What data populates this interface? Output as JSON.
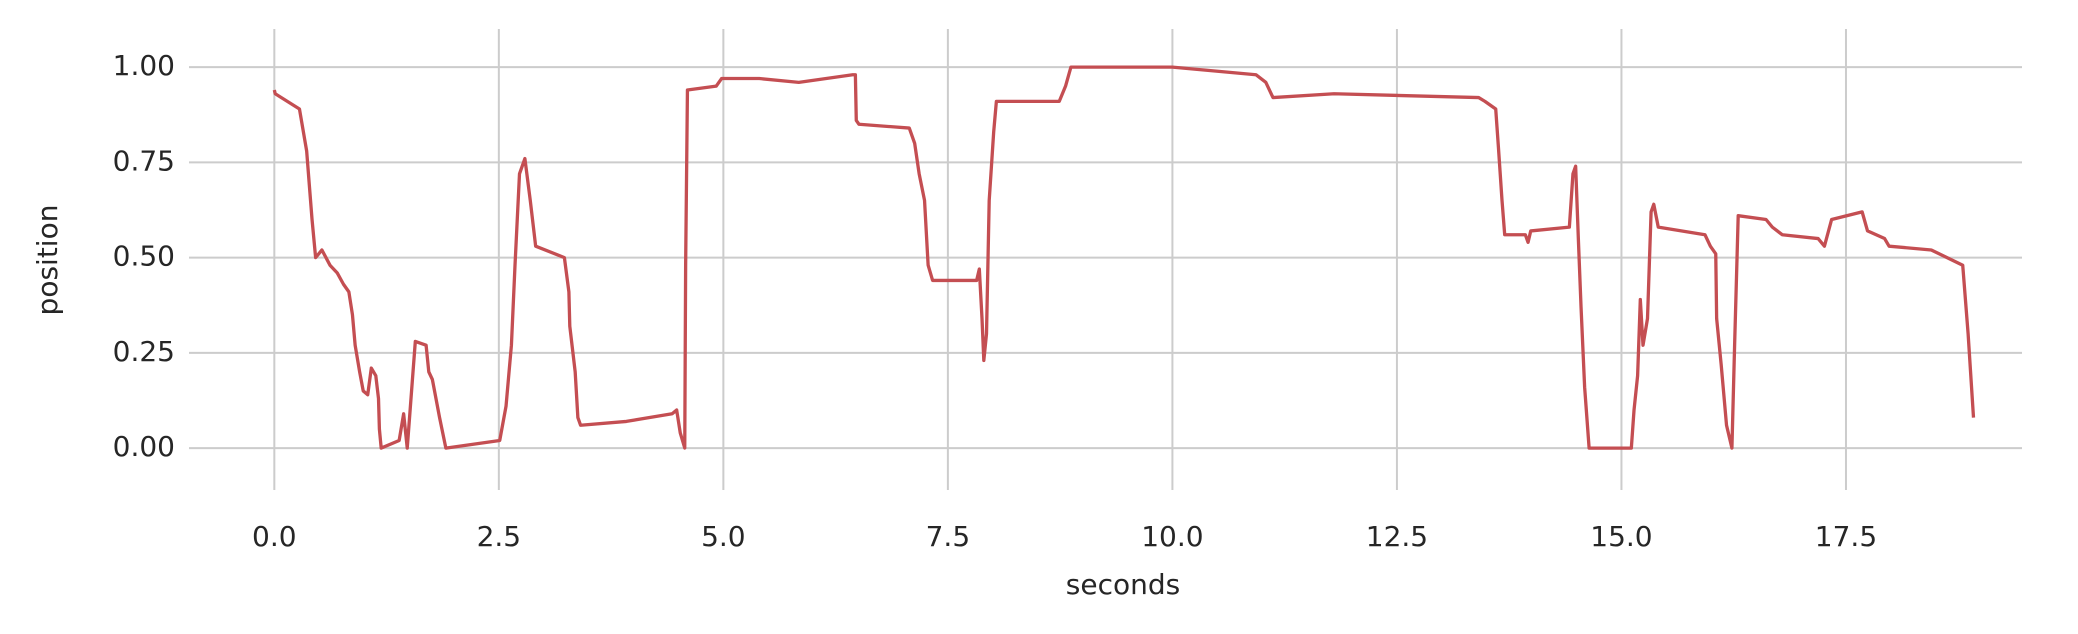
{
  "chart_data": {
    "type": "line",
    "x_label": "seconds",
    "y_label": "position",
    "x": [
      0.0,
      0.01,
      0.28,
      0.36,
      0.39,
      0.42,
      0.46,
      0.53,
      0.62,
      0.7,
      0.77,
      0.83,
      0.87,
      0.9,
      0.95,
      0.99,
      1.04,
      1.08,
      1.13,
      1.16,
      1.17,
      1.19,
      1.39,
      1.44,
      1.48,
      1.57,
      1.69,
      1.72,
      1.76,
      1.84,
      1.91,
      2.51,
      2.58,
      2.64,
      2.68,
      2.73,
      2.79,
      2.85,
      2.91,
      3.23,
      3.28,
      3.29,
      3.35,
      3.38,
      3.41,
      3.92,
      4.43,
      4.48,
      4.52,
      4.57,
      4.58,
      4.6,
      4.92,
      4.98,
      5.4,
      5.84,
      6.44,
      6.47,
      6.48,
      6.51,
      7.07,
      7.13,
      7.18,
      7.24,
      7.28,
      7.33,
      7.82,
      7.85,
      7.88,
      7.9,
      7.93,
      7.96,
      8.01,
      8.04,
      8.74,
      8.81,
      8.87,
      10.0,
      10.93,
      11.04,
      11.12,
      11.8,
      13.41,
      13.48,
      13.6,
      13.63,
      13.67,
      13.7,
      13.93,
      13.96,
      13.99,
      14.42,
      14.46,
      14.49,
      14.52,
      14.55,
      14.59,
      14.64,
      15.11,
      15.14,
      15.18,
      15.21,
      15.24,
      15.29,
      15.33,
      15.36,
      15.41,
      15.93,
      15.99,
      16.05,
      16.06,
      16.11,
      16.17,
      16.23,
      16.26,
      16.3,
      16.61,
      16.68,
      16.79,
      17.19,
      17.26,
      17.34,
      17.68,
      17.74,
      17.93,
      17.98,
      18.45,
      18.8,
      18.86,
      18.92
    ],
    "series": [
      {
        "name": "position",
        "color": "#c44e52",
        "values": [
          0.94,
          0.93,
          0.89,
          0.78,
          0.69,
          0.6,
          0.5,
          0.52,
          0.48,
          0.46,
          0.43,
          0.41,
          0.35,
          0.27,
          0.2,
          0.15,
          0.14,
          0.21,
          0.19,
          0.13,
          0.05,
          0.0,
          0.02,
          0.09,
          0.0,
          0.28,
          0.27,
          0.2,
          0.18,
          0.08,
          0.0,
          0.02,
          0.11,
          0.27,
          0.48,
          0.72,
          0.76,
          0.65,
          0.53,
          0.5,
          0.41,
          0.32,
          0.2,
          0.08,
          0.06,
          0.07,
          0.09,
          0.1,
          0.04,
          0.0,
          0.48,
          0.94,
          0.95,
          0.97,
          0.97,
          0.96,
          0.98,
          0.98,
          0.86,
          0.85,
          0.84,
          0.8,
          0.72,
          0.65,
          0.48,
          0.44,
          0.44,
          0.47,
          0.34,
          0.23,
          0.3,
          0.65,
          0.83,
          0.91,
          0.91,
          0.95,
          1.0,
          1.0,
          0.98,
          0.96,
          0.92,
          0.93,
          0.92,
          0.91,
          0.89,
          0.79,
          0.65,
          0.56,
          0.56,
          0.54,
          0.57,
          0.58,
          0.72,
          0.74,
          0.55,
          0.37,
          0.16,
          0.0,
          0.0,
          0.1,
          0.19,
          0.39,
          0.27,
          0.34,
          0.62,
          0.64,
          0.58,
          0.56,
          0.53,
          0.51,
          0.34,
          0.22,
          0.06,
          0.0,
          0.27,
          0.61,
          0.6,
          0.58,
          0.56,
          0.55,
          0.53,
          0.6,
          0.62,
          0.57,
          0.55,
          0.53,
          0.52,
          0.48,
          0.3,
          0.08
        ]
      }
    ],
    "xlim": [
      -0.95,
      19.46
    ],
    "ylim": [
      -0.11,
      1.1
    ],
    "xticks": [
      {
        "value": 0,
        "label": "0.0"
      },
      {
        "value": 2.5,
        "label": "2.5"
      },
      {
        "value": 5,
        "label": "5.0"
      },
      {
        "value": 7.5,
        "label": "7.5"
      },
      {
        "value": 10,
        "label": "10.0"
      },
      {
        "value": 12.5,
        "label": "12.5"
      },
      {
        "value": 15,
        "label": "15.0"
      },
      {
        "value": 17.5,
        "label": "17.5"
      }
    ],
    "yticks": [
      {
        "value": 0,
        "label": "0.00"
      },
      {
        "value": 0.25,
        "label": "0.25"
      },
      {
        "value": 0.5,
        "label": "0.50"
      },
      {
        "value": 0.75,
        "label": "0.75"
      },
      {
        "value": 1,
        "label": "1.00"
      }
    ],
    "grid": true
  }
}
